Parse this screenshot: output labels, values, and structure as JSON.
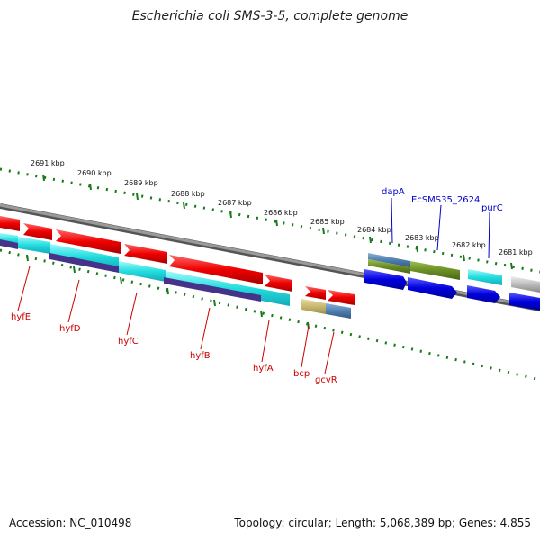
{
  "title": "Escherichia coli SMS-3-5, complete genome",
  "footer": {
    "accession": "Accession: NC_010498",
    "summary": "Topology: circular; Length: 5,068,389 bp; Genes: 4,855"
  },
  "scale_labels": [
    "2691 kbp",
    "2690 kbp",
    "2689 kbp",
    "2688 kbp",
    "2687 kbp",
    "2686 kbp",
    "2685 kbp",
    "2684 kbp",
    "2683 kbp",
    "2682 kbp",
    "2681 kbp"
  ],
  "gene_labels": [
    {
      "name": "hyfE",
      "strand": "minus"
    },
    {
      "name": "hyfD",
      "strand": "minus"
    },
    {
      "name": "hyfC",
      "strand": "minus"
    },
    {
      "name": "hyfB",
      "strand": "minus"
    },
    {
      "name": "hyfA",
      "strand": "minus"
    },
    {
      "name": "bcp",
      "strand": "minus"
    },
    {
      "name": "gcvR",
      "strand": "minus"
    },
    {
      "name": "dapA",
      "strand": "plus"
    },
    {
      "name": "EcSMS35_2624",
      "strand": "plus"
    },
    {
      "name": "purC",
      "strand": "plus"
    }
  ],
  "colors": {
    "minus_label": "#cc0000",
    "plus_label": "#0000cc",
    "gene_red": "#ee0000",
    "cds_cyan": "#22dddd",
    "purple": "#443388",
    "gene_blue": "#0000dd",
    "olive": "#6b8e23",
    "steel": "#4f7fb0",
    "khaki": "#c8b870",
    "gray": "#bbbbbb",
    "tick": "#1a7a1a"
  }
}
